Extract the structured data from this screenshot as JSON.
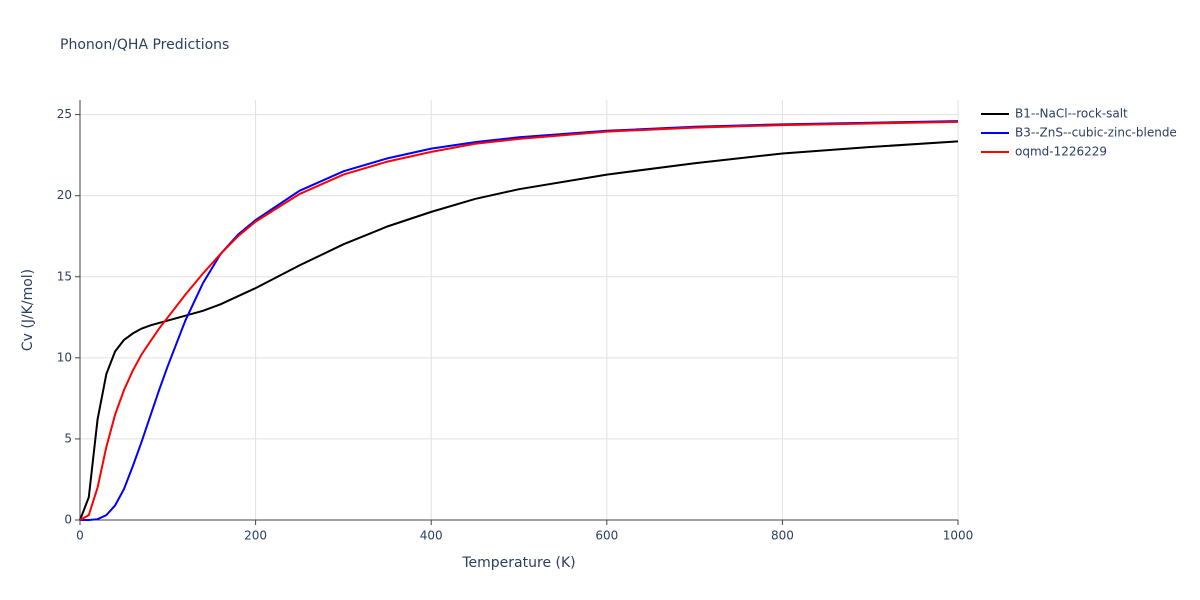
{
  "chart_data": {
    "type": "line",
    "title": "Phonon/QHA Predictions",
    "x_label": "Temperature (K)",
    "y_label": "Cv (J/K/mol)",
    "x": [
      0,
      10,
      20,
      30,
      40,
      50,
      60,
      70,
      80,
      90,
      100,
      120,
      140,
      160,
      180,
      200,
      250,
      300,
      350,
      400,
      450,
      500,
      600,
      700,
      800,
      900,
      1000
    ],
    "series": [
      {
        "name": "B1--NaCl--rock-salt",
        "color": "#000000",
        "values": [
          0,
          1.4,
          6.2,
          9.0,
          10.4,
          11.1,
          11.5,
          11.8,
          12.0,
          12.15,
          12.3,
          12.6,
          12.9,
          13.3,
          13.8,
          14.3,
          15.7,
          17.0,
          18.1,
          19.0,
          19.8,
          20.4,
          21.3,
          22.0,
          22.6,
          23.0,
          23.35
        ]
      },
      {
        "name": "B3--ZnS--cubic-zinc-blende",
        "color": "#0000ff",
        "values": [
          0,
          0,
          0.05,
          0.3,
          0.9,
          1.9,
          3.3,
          4.8,
          6.4,
          8.0,
          9.5,
          12.3,
          14.6,
          16.4,
          17.6,
          18.5,
          20.3,
          21.5,
          22.3,
          22.9,
          23.3,
          23.6,
          24.0,
          24.25,
          24.4,
          24.5,
          24.6
        ]
      },
      {
        "name": "oqmd-1226229",
        "color": "#ff0000",
        "values": [
          0,
          0.3,
          2.0,
          4.5,
          6.5,
          8.0,
          9.2,
          10.2,
          11.0,
          11.8,
          12.5,
          13.9,
          15.2,
          16.4,
          17.5,
          18.4,
          20.1,
          21.3,
          22.1,
          22.7,
          23.2,
          23.5,
          23.95,
          24.2,
          24.35,
          24.45,
          24.55
        ]
      }
    ],
    "xlim": [
      0,
      1000
    ],
    "xticks": [
      0,
      200,
      400,
      600,
      800,
      1000
    ],
    "ylim": [
      0,
      25.9
    ],
    "yticks": [
      0,
      5,
      10,
      15,
      20,
      25
    ],
    "grid": true,
    "legend": "outside-right"
  }
}
